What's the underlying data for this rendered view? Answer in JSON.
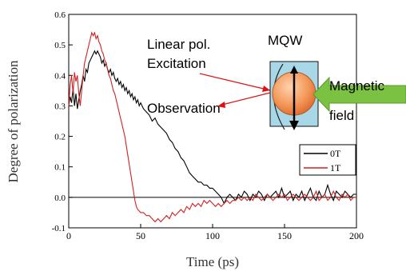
{
  "chart_data": {
    "type": "line",
    "title": "",
    "xlabel": "Time (ps)",
    "ylabel": "Degree of polarization",
    "xlim": [
      0,
      200
    ],
    "ylim": [
      -0.1,
      0.6
    ],
    "x_ticks": [
      "0",
      "50",
      "100",
      "150",
      "200"
    ],
    "y_ticks": [
      "-0.1",
      "0.0",
      "0.1",
      "0.2",
      "0.3",
      "0.4",
      "0.5",
      "0.6"
    ],
    "zero_line": true,
    "grid": false,
    "legend_position": "right",
    "series": [
      {
        "name": "0T",
        "color": "#000000",
        "points": [
          [
            0,
            0.3
          ],
          [
            1,
            0.33
          ],
          [
            2,
            0.31
          ],
          [
            3,
            0.36
          ],
          [
            4,
            0.3
          ],
          [
            5,
            0.34
          ],
          [
            6,
            0.29
          ],
          [
            7,
            0.32
          ],
          [
            8,
            0.35
          ],
          [
            9,
            0.37
          ],
          [
            10,
            0.4
          ],
          [
            11,
            0.38
          ],
          [
            12,
            0.42
          ],
          [
            13,
            0.41
          ],
          [
            14,
            0.44
          ],
          [
            15,
            0.45
          ],
          [
            16,
            0.46
          ],
          [
            17,
            0.47
          ],
          [
            18,
            0.48
          ],
          [
            19,
            0.47
          ],
          [
            20,
            0.48
          ],
          [
            21,
            0.47
          ],
          [
            22,
            0.46
          ],
          [
            23,
            0.44
          ],
          [
            24,
            0.45
          ],
          [
            25,
            0.43
          ],
          [
            26,
            0.44
          ],
          [
            27,
            0.42
          ],
          [
            28,
            0.41
          ],
          [
            29,
            0.42
          ],
          [
            30,
            0.4
          ],
          [
            31,
            0.41
          ],
          [
            32,
            0.39
          ],
          [
            33,
            0.38
          ],
          [
            34,
            0.39
          ],
          [
            35,
            0.37
          ],
          [
            36,
            0.38
          ],
          [
            37,
            0.36
          ],
          [
            38,
            0.37
          ],
          [
            39,
            0.35
          ],
          [
            40,
            0.36
          ],
          [
            41,
            0.34
          ],
          [
            42,
            0.35
          ],
          [
            43,
            0.33
          ],
          [
            44,
            0.34
          ],
          [
            45,
            0.32
          ],
          [
            46,
            0.33
          ],
          [
            47,
            0.31
          ],
          [
            48,
            0.32
          ],
          [
            49,
            0.3
          ],
          [
            50,
            0.31
          ],
          [
            52,
            0.29
          ],
          [
            54,
            0.28
          ],
          [
            56,
            0.27
          ],
          [
            58,
            0.25
          ],
          [
            60,
            0.26
          ],
          [
            62,
            0.24
          ],
          [
            64,
            0.23
          ],
          [
            66,
            0.22
          ],
          [
            68,
            0.21
          ],
          [
            70,
            0.19
          ],
          [
            72,
            0.18
          ],
          [
            74,
            0.16
          ],
          [
            76,
            0.15
          ],
          [
            78,
            0.13
          ],
          [
            80,
            0.12
          ],
          [
            82,
            0.1
          ],
          [
            84,
            0.08
          ],
          [
            86,
            0.07
          ],
          [
            88,
            0.06
          ],
          [
            90,
            0.05
          ],
          [
            92,
            0.05
          ],
          [
            94,
            0.04
          ],
          [
            96,
            0.04
          ],
          [
            98,
            0.03
          ],
          [
            100,
            0.03
          ],
          [
            102,
            0.02
          ],
          [
            104,
            0.01
          ],
          [
            106,
            0.0
          ],
          [
            108,
            -0.02
          ],
          [
            110,
            0.0
          ],
          [
            112,
            0.01
          ],
          [
            114,
            0.0
          ],
          [
            116,
            -0.01
          ],
          [
            118,
            0.01
          ],
          [
            120,
            0.0
          ],
          [
            122,
            0.02
          ],
          [
            124,
            0.01
          ],
          [
            126,
            -0.01
          ],
          [
            128,
            0.01
          ],
          [
            130,
            0.0
          ],
          [
            132,
            0.02
          ],
          [
            134,
            0.01
          ],
          [
            136,
            -0.01
          ],
          [
            138,
            0.01
          ],
          [
            140,
            0.0
          ],
          [
            142,
            0.01
          ],
          [
            144,
            0.02
          ],
          [
            146,
            0.0
          ],
          [
            148,
            0.03
          ],
          [
            150,
            0.0
          ],
          [
            152,
            0.01
          ],
          [
            154,
            0.02
          ],
          [
            156,
            -0.01
          ],
          [
            158,
            0.01
          ],
          [
            160,
            0.0
          ],
          [
            162,
            0.02
          ],
          [
            164,
            -0.01
          ],
          [
            166,
            0.01
          ],
          [
            168,
            0.03
          ],
          [
            170,
            0.0
          ],
          [
            172,
            -0.01
          ],
          [
            174,
            0.02
          ],
          [
            176,
            0.0
          ],
          [
            178,
            0.01
          ],
          [
            180,
            0.04
          ],
          [
            182,
            0.01
          ],
          [
            184,
            -0.01
          ],
          [
            186,
            0.02
          ],
          [
            188,
            0.01
          ],
          [
            190,
            0.0
          ],
          [
            192,
            0.02
          ],
          [
            194,
            0.01
          ],
          [
            196,
            0.0
          ],
          [
            198,
            0.01
          ],
          [
            200,
            0.01
          ]
        ]
      },
      {
        "name": "1T",
        "color": "#d42020",
        "points": [
          [
            0,
            0.3
          ],
          [
            1,
            0.37
          ],
          [
            2,
            0.4
          ],
          [
            3,
            0.34
          ],
          [
            4,
            0.41
          ],
          [
            5,
            0.38
          ],
          [
            6,
            0.4
          ],
          [
            7,
            0.34
          ],
          [
            8,
            0.3
          ],
          [
            9,
            0.35
          ],
          [
            10,
            0.4
          ],
          [
            11,
            0.44
          ],
          [
            12,
            0.46
          ],
          [
            13,
            0.48
          ],
          [
            14,
            0.5
          ],
          [
            15,
            0.52
          ],
          [
            16,
            0.54
          ],
          [
            17,
            0.53
          ],
          [
            18,
            0.54
          ],
          [
            19,
            0.52
          ],
          [
            20,
            0.53
          ],
          [
            21,
            0.51
          ],
          [
            22,
            0.5
          ],
          [
            23,
            0.48
          ],
          [
            24,
            0.47
          ],
          [
            25,
            0.45
          ],
          [
            26,
            0.44
          ],
          [
            27,
            0.42
          ],
          [
            28,
            0.4
          ],
          [
            29,
            0.39
          ],
          [
            30,
            0.37
          ],
          [
            31,
            0.35
          ],
          [
            32,
            0.34
          ],
          [
            33,
            0.32
          ],
          [
            34,
            0.3
          ],
          [
            35,
            0.28
          ],
          [
            36,
            0.26
          ],
          [
            37,
            0.24
          ],
          [
            38,
            0.22
          ],
          [
            39,
            0.2
          ],
          [
            40,
            0.17
          ],
          [
            41,
            0.14
          ],
          [
            42,
            0.11
          ],
          [
            43,
            0.08
          ],
          [
            44,
            0.05
          ],
          [
            45,
            0.02
          ],
          [
            46,
            -0.01
          ],
          [
            47,
            -0.03
          ],
          [
            48,
            -0.04
          ],
          [
            50,
            -0.05
          ],
          [
            52,
            -0.05
          ],
          [
            54,
            -0.06
          ],
          [
            56,
            -0.06
          ],
          [
            58,
            -0.07
          ],
          [
            60,
            -0.08
          ],
          [
            62,
            -0.07
          ],
          [
            64,
            -0.08
          ],
          [
            66,
            -0.07
          ],
          [
            68,
            -0.06
          ],
          [
            70,
            -0.07
          ],
          [
            72,
            -0.05
          ],
          [
            74,
            -0.06
          ],
          [
            76,
            -0.05
          ],
          [
            78,
            -0.04
          ],
          [
            80,
            -0.05
          ],
          [
            82,
            -0.03
          ],
          [
            84,
            -0.04
          ],
          [
            86,
            -0.02
          ],
          [
            88,
            -0.03
          ],
          [
            90,
            -0.02
          ],
          [
            92,
            -0.03
          ],
          [
            94,
            -0.01
          ],
          [
            96,
            -0.02
          ],
          [
            98,
            -0.01
          ],
          [
            100,
            -0.02
          ],
          [
            102,
            -0.03
          ],
          [
            104,
            -0.02
          ],
          [
            106,
            -0.03
          ],
          [
            108,
            -0.02
          ],
          [
            110,
            -0.01
          ],
          [
            112,
            -0.02
          ],
          [
            114,
            -0.01
          ],
          [
            116,
            -0.01
          ],
          [
            118,
            0.0
          ],
          [
            120,
            -0.01
          ],
          [
            122,
            0.0
          ],
          [
            124,
            -0.01
          ],
          [
            126,
            0.0
          ],
          [
            128,
            -0.01
          ],
          [
            130,
            0.01
          ],
          [
            132,
            0.0
          ],
          [
            134,
            -0.01
          ],
          [
            136,
            0.0
          ],
          [
            138,
            0.01
          ],
          [
            140,
            0.0
          ],
          [
            142,
            -0.01
          ],
          [
            144,
            0.0
          ],
          [
            146,
            0.01
          ],
          [
            148,
            0.0
          ],
          [
            150,
            0.01
          ],
          [
            152,
            -0.01
          ],
          [
            154,
            0.0
          ],
          [
            156,
            0.01
          ],
          [
            158,
            0.0
          ],
          [
            160,
            -0.01
          ],
          [
            162,
            0.0
          ],
          [
            164,
            0.01
          ],
          [
            166,
            0.0
          ],
          [
            168,
            -0.01
          ],
          [
            170,
            0.0
          ],
          [
            172,
            0.02
          ],
          [
            174,
            -0.01
          ],
          [
            176,
            0.0
          ],
          [
            178,
            0.01
          ],
          [
            180,
            -0.01
          ],
          [
            182,
            0.0
          ],
          [
            184,
            0.02
          ],
          [
            186,
            0.0
          ],
          [
            188,
            -0.01
          ],
          [
            190,
            0.01
          ],
          [
            192,
            0.0
          ],
          [
            194,
            0.01
          ],
          [
            196,
            -0.01
          ],
          [
            198,
            0.0
          ],
          [
            200,
            0.0
          ]
        ]
      }
    ],
    "annotations": {
      "linear_pol": "Linear pol.",
      "excitation": "Excitation",
      "observation": "Observation",
      "mqw": "MQW",
      "magnetic_line1": "Magnetic",
      "magnetic_line2": "field"
    },
    "colors": {
      "arrow_red": "#e01010",
      "mqw_fill": "#a8d8e8",
      "sphere": "#f4985a",
      "field_arrow": "#7cc242"
    }
  }
}
